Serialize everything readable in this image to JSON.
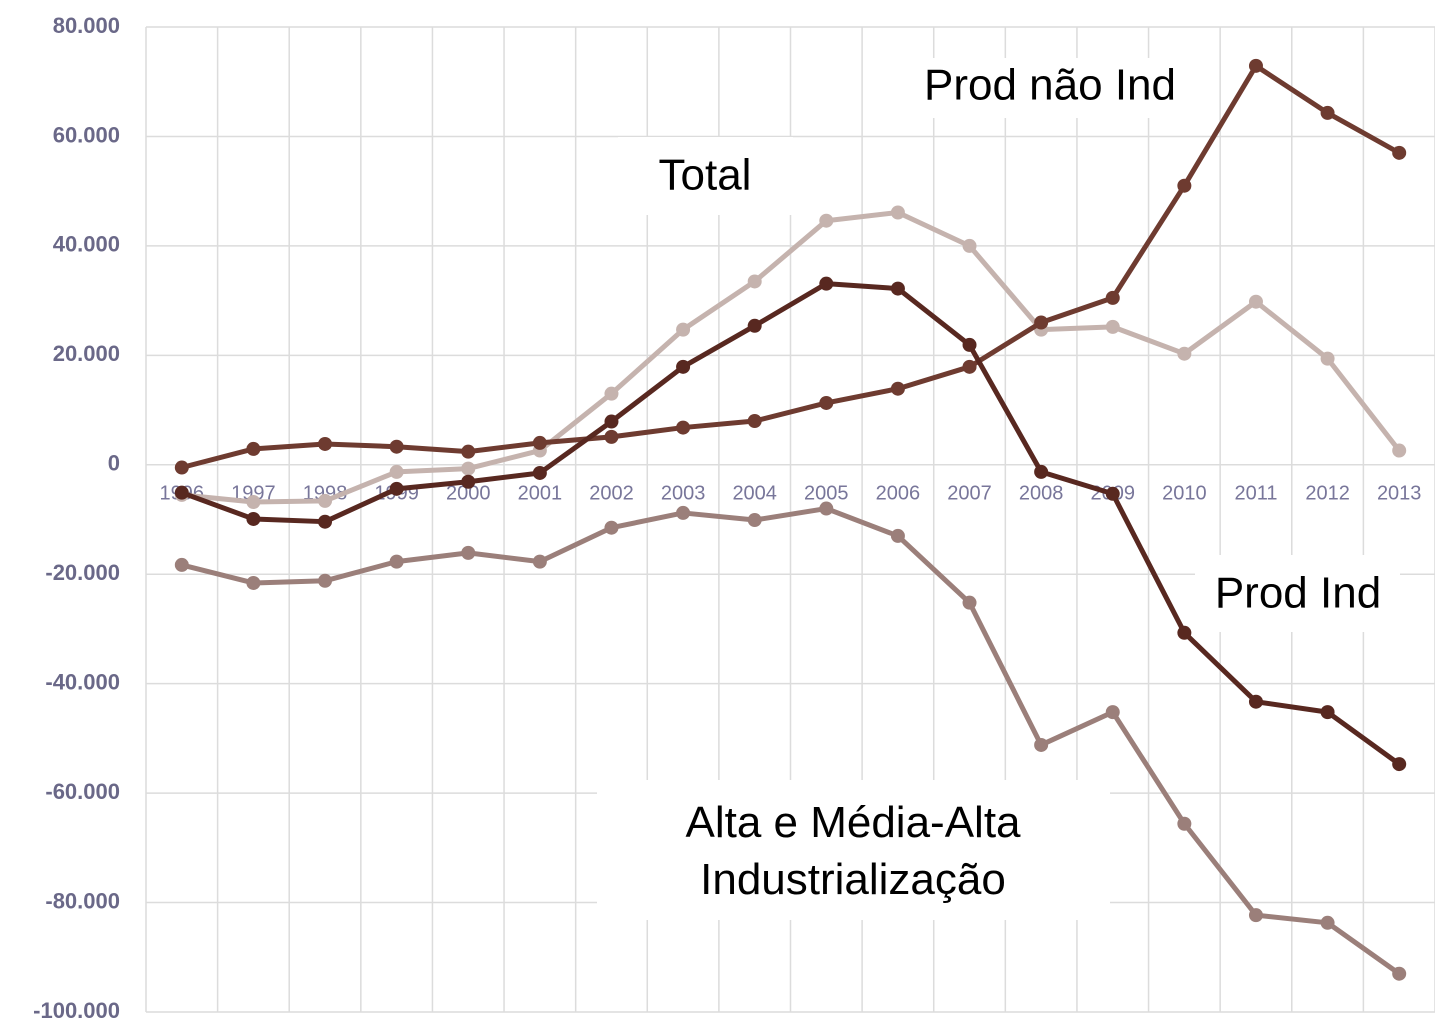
{
  "chart_data": {
    "type": "line",
    "categories": [
      "1996",
      "1997",
      "1998",
      "1999",
      "2000",
      "2001",
      "2002",
      "2003",
      "2004",
      "2005",
      "2006",
      "2007",
      "2008",
      "2009",
      "2010",
      "2011",
      "2012",
      "2013"
    ],
    "series": [
      {
        "name": "Total",
        "color": "#c5b3ae",
        "values": [
          -5500,
          -6800,
          -6600,
          -1300,
          -700,
          2600,
          13000,
          24700,
          33500,
          44600,
          46100,
          40000,
          24700,
          25200,
          20300,
          29800,
          19400,
          2600
        ]
      },
      {
        "name": "Prod não Ind",
        "color": "#6e3b30",
        "values": [
          -500,
          2900,
          3800,
          3300,
          2400,
          4000,
          5100,
          6800,
          8000,
          11300,
          13900,
          17900,
          26000,
          30500,
          51000,
          72900,
          64300,
          57000
        ]
      },
      {
        "name": "Prod Ind",
        "color": "#582820",
        "values": [
          -5100,
          -9900,
          -10400,
          -4400,
          -3100,
          -1500,
          7900,
          17900,
          25400,
          33100,
          32200,
          21900,
          -1300,
          -5300,
          -30700,
          -43300,
          -45200,
          -54700
        ]
      },
      {
        "name": "Alta e Média-Alta Industrialização",
        "color": "#9b7f7a",
        "values": [
          -18300,
          -21600,
          -21200,
          -17700,
          -16100,
          -17700,
          -11500,
          -8800,
          -10100,
          -8000,
          -13000,
          -25200,
          -51200,
          -45200,
          -65600,
          -82300,
          -83700,
          -93000
        ]
      }
    ],
    "ylim": [
      -100000,
      80000
    ],
    "yticks": [
      {
        "value": 80000,
        "label": "80.000"
      },
      {
        "value": 60000,
        "label": "60.000"
      },
      {
        "value": 40000,
        "label": "40.000"
      },
      {
        "value": 20000,
        "label": "20.000"
      },
      0,
      {
        "value": -20000,
        "label": "-20.000"
      },
      {
        "value": -40000,
        "label": "-40.000"
      },
      {
        "value": -60000,
        "label": "-60.000"
      },
      {
        "value": -80000,
        "label": "-80.000"
      },
      {
        "value": -100000,
        "label": "-100.000"
      }
    ],
    "grid": true
  }
}
